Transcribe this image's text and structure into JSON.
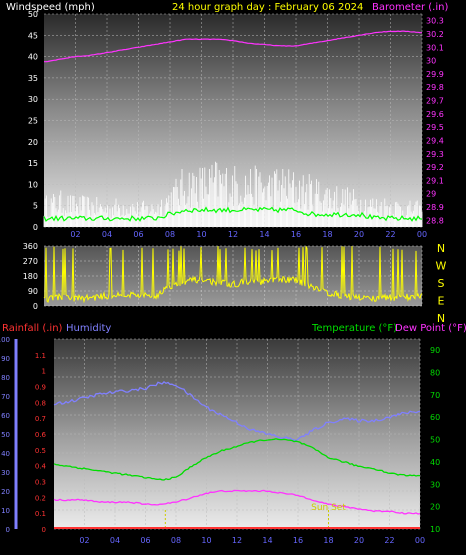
{
  "header": {
    "left": "Windspeed (mph)",
    "center": "24 hour graph day : February 06 2024",
    "right": "Barometer (.in)"
  },
  "colors": {
    "wind": "#ffffff",
    "wind_avg": "#00ff00",
    "barometer": "#ff33ff",
    "direction": "#ffff00",
    "rainfall": "#ff3333",
    "humidity": "#8080ff",
    "temperature": "#00dd00",
    "dewpoint": "#ff33ff",
    "sunset": "#cccc00",
    "x_ticks": "#6666ff"
  },
  "x_ticks": [
    "02",
    "04",
    "06",
    "08",
    "10",
    "12",
    "14",
    "16",
    "18",
    "20",
    "22",
    "00"
  ],
  "chart_data": [
    {
      "type": "line",
      "title": "Windspeed (mph)",
      "ylabel_left": "Windspeed (mph)",
      "ylabel_right": "Barometer (.in)",
      "ylim_left": [
        0,
        50
      ],
      "ylim_right": [
        28.75,
        30.35
      ],
      "yticks_left": [
        "0",
        "5",
        "10",
        "15",
        "20",
        "25",
        "30",
        "35",
        "40",
        "45",
        "50"
      ],
      "yticks_right": [
        "28.8",
        "28.9",
        "29",
        "29.1",
        "29.2",
        "29.3",
        "29.4",
        "29.5",
        "29.6",
        "29.7",
        "29.8",
        "29.9",
        "30",
        "30.1",
        "30.2",
        "30.3"
      ],
      "x_hours": [
        0,
        1,
        2,
        3,
        4,
        5,
        6,
        7,
        8,
        9,
        10,
        11,
        12,
        13,
        14,
        15,
        16,
        17,
        18,
        19,
        20,
        21,
        22,
        23,
        24
      ],
      "series": [
        {
          "name": "Windspeed gust",
          "values": [
            6,
            7,
            6,
            6,
            5,
            6,
            5,
            5,
            8,
            12,
            12,
            13,
            12,
            12,
            11,
            12,
            11,
            10,
            9,
            8,
            7,
            6,
            6,
            5,
            5
          ]
        },
        {
          "name": "Windspeed average",
          "values": [
            2,
            2,
            2,
            2,
            2,
            2,
            2,
            2,
            3,
            4,
            4,
            4,
            4,
            4,
            4,
            4,
            4,
            3,
            3,
            3,
            3,
            2,
            2,
            2,
            2
          ]
        },
        {
          "name": "Barometer",
          "values": [
            29.99,
            30.01,
            30.03,
            30.04,
            30.06,
            30.08,
            30.1,
            30.12,
            30.14,
            30.16,
            30.16,
            30.16,
            30.15,
            30.13,
            30.12,
            30.11,
            30.11,
            30.13,
            30.15,
            30.17,
            30.19,
            30.21,
            30.22,
            30.22,
            30.21
          ]
        }
      ]
    },
    {
      "type": "line",
      "title": "Wind direction",
      "ylim": [
        0,
        360
      ],
      "yticks": [
        "0",
        "90",
        "180",
        "270",
        "360"
      ],
      "right_labels": [
        "N",
        "W",
        "S",
        "E",
        "N"
      ],
      "x_hours": [
        0,
        1,
        2,
        3,
        4,
        5,
        6,
        7,
        8,
        9,
        10,
        11,
        12,
        13,
        14,
        15,
        16,
        17,
        18,
        19,
        20,
        21,
        22,
        23,
        24
      ],
      "series": [
        {
          "name": "Wind direction",
          "values": [
            40,
            55,
            45,
            50,
            60,
            70,
            65,
            55,
            120,
            150,
            160,
            140,
            130,
            150,
            145,
            160,
            155,
            120,
            80,
            60,
            50,
            45,
            50,
            55,
            60
          ]
        }
      ]
    },
    {
      "type": "line",
      "left_label_rain": "Rainfall (.in)",
      "left_label_hum": "Humidity",
      "right_label_temp": "Temperature (°F)",
      "right_label_dew": "Dew Point (°F)",
      "ylim_humidity": [
        0,
        100
      ],
      "ylim_rainfall": [
        0,
        1.2
      ],
      "ylim_temperature": [
        10,
        95
      ],
      "yticks_humidity": [
        "0",
        "10",
        "20",
        "30",
        "40",
        "50",
        "60",
        "70",
        "80",
        "90",
        "100"
      ],
      "yticks_rainfall": [
        "0",
        "0.1",
        "0.2",
        "0.3",
        "0.4",
        "0.5",
        "0.6",
        "0.7",
        "0.8",
        "0.9",
        "1",
        "1.1"
      ],
      "yticks_temperature": [
        "10",
        "20",
        "30",
        "40",
        "50",
        "60",
        "70",
        "80",
        "90"
      ],
      "annotation": "Sun Set",
      "sunset_hour": 18.0,
      "sunrise_hour": 7.3,
      "x_hours": [
        0,
        1,
        2,
        3,
        4,
        5,
        6,
        7,
        8,
        9,
        10,
        11,
        12,
        13,
        14,
        15,
        16,
        17,
        18,
        19,
        20,
        21,
        22,
        23,
        24
      ],
      "series": [
        {
          "name": "Humidity",
          "values": [
            66,
            67,
            69,
            71,
            72,
            73,
            74,
            77,
            76,
            70,
            64,
            60,
            56,
            52,
            50,
            48,
            47,
            52,
            56,
            58,
            57,
            57,
            59,
            61,
            62
          ]
        },
        {
          "name": "Temperature",
          "values": [
            39,
            38,
            37,
            36,
            35,
            34,
            33,
            32,
            33,
            38,
            42,
            45,
            47,
            49,
            50,
            50,
            49,
            46,
            42,
            40,
            38,
            37,
            35,
            34,
            34
          ]
        },
        {
          "name": "Dew Point",
          "values": [
            23,
            23,
            23,
            22,
            22,
            22,
            21,
            21,
            22,
            24,
            26,
            27,
            27,
            27,
            27,
            26,
            25,
            23,
            21,
            20,
            19,
            18,
            18,
            17,
            17
          ]
        },
        {
          "name": "Rainfall",
          "values": [
            0,
            0,
            0,
            0,
            0,
            0,
            0,
            0,
            0,
            0,
            0,
            0,
            0,
            0,
            0,
            0,
            0,
            0,
            0,
            0,
            0,
            0,
            0,
            0,
            0
          ]
        }
      ]
    }
  ]
}
